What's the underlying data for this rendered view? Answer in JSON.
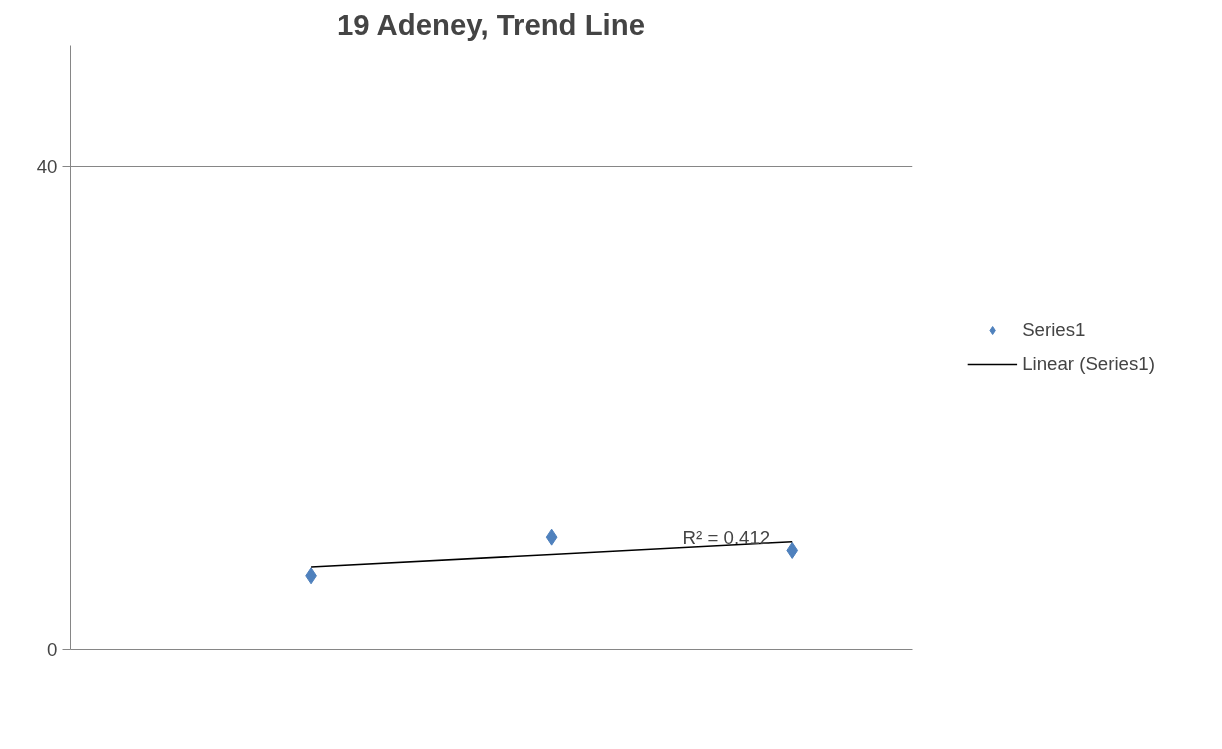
{
  "chart_data": {
    "type": "scatter",
    "title": "19 Adeney, Trend Line",
    "categories": [
      null,
      null,
      null
    ],
    "series": [
      {
        "name": "Series1",
        "color": "#4f81bd",
        "values": [
          6.1,
          9.3,
          8.2
        ],
        "marker": "diamond"
      },
      {
        "name": "Linear (Series1)",
        "type": "line",
        "color": "#000000",
        "values": [
          6.82,
          7.87,
          8.92
        ],
        "marker": "none",
        "line_style": "solid"
      }
    ],
    "ylim": [
      0,
      50
    ],
    "yticks": [
      0,
      40
    ],
    "grid": "y",
    "legend": "right",
    "tick_labels": "y",
    "annotations": [
      "R² = 0.412"
    ]
  }
}
